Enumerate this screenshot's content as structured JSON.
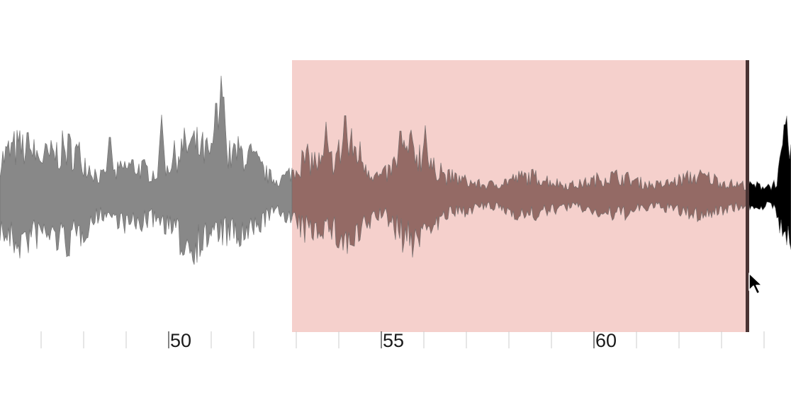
{
  "timeline": {
    "visible_start": 46.3,
    "visible_end": 65.0,
    "tick_step": 1,
    "labeled_ticks": [
      "50",
      "55",
      "60"
    ]
  },
  "selection": {
    "start": 52.9,
    "end": 63.6
  },
  "playhead": {
    "time": 63.6
  },
  "colors": {
    "waveform": "#888888",
    "waveform_stroke": "#6f6f6f",
    "waveform_selected": "#946a65",
    "waveform_after": "#000000",
    "selection_fill": "#f5d0cc",
    "playhead": "#4a3434",
    "tick": "#cccccc",
    "tick_label": "#1a1a1a"
  },
  "icons": {
    "cursor": "arrow-pointer-icon"
  }
}
